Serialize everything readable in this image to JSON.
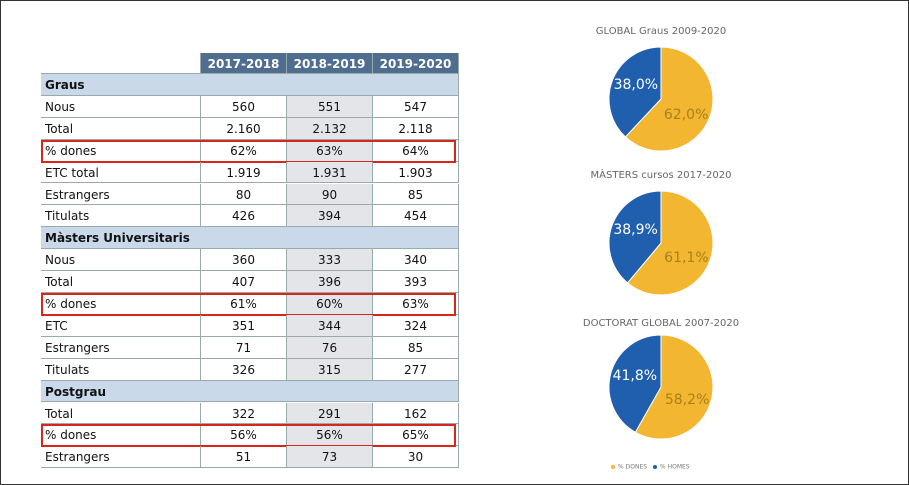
{
  "table": {
    "columns": [
      "2017-2018",
      "2018-2019",
      "2019-2020"
    ],
    "sections": [
      {
        "title": "Graus",
        "highlight_row": 2,
        "rows": [
          [
            "Nous",
            "560",
            "551",
            "547"
          ],
          [
            "Total",
            "2.160",
            "2.132",
            "2.118"
          ],
          [
            "% dones",
            "62%",
            "63%",
            "64%"
          ],
          [
            "ETC total",
            "1.919",
            "1.931",
            "1.903"
          ],
          [
            "Estrangers",
            "80",
            "90",
            "85"
          ],
          [
            "Titulats",
            "426",
            "394",
            "454"
          ]
        ]
      },
      {
        "title": "Màsters Universitaris",
        "highlight_row": 2,
        "rows": [
          [
            "Nous",
            "360",
            "333",
            "340"
          ],
          [
            "Total",
            "407",
            "396",
            "393"
          ],
          [
            "% dones",
            "61%",
            "60%",
            "63%"
          ],
          [
            "ETC",
            "351",
            "344",
            "324"
          ],
          [
            "Estrangers",
            "71",
            "76",
            "85"
          ],
          [
            "Titulats",
            "326",
            "315",
            "277"
          ]
        ]
      },
      {
        "title": "Postgrau",
        "highlight_row": 1,
        "rows": [
          [
            "Total",
            "322",
            "291",
            "162"
          ],
          [
            "% dones",
            "56%",
            "56%",
            "65%"
          ],
          [
            "Estrangers",
            "51",
            "73",
            "30"
          ]
        ]
      }
    ]
  },
  "chart_data": [
    {
      "type": "pie",
      "title": "GLOBAL Graus 2009-2020",
      "values": [
        62.0,
        38.0
      ],
      "value_labels": [
        "62,0%",
        "38,0%"
      ],
      "colors": [
        "#f2b630",
        "#1f5fae"
      ]
    },
    {
      "type": "pie",
      "title": "MÀSTERS cursos 2017-2020",
      "values": [
        61.1,
        38.9
      ],
      "value_labels": [
        "61,1%",
        "38,9%"
      ],
      "colors": [
        "#f2b630",
        "#1f5fae"
      ]
    },
    {
      "type": "pie",
      "title": "DOCTORAT GLOBAL 2007-2020",
      "categories": [
        "% DONES",
        "% HOMES"
      ],
      "values": [
        58.2,
        41.8
      ],
      "value_labels": [
        "58,2%",
        "41,8%"
      ],
      "colors": [
        "#f2b630",
        "#1f5fae"
      ],
      "legend": "bottom"
    }
  ]
}
